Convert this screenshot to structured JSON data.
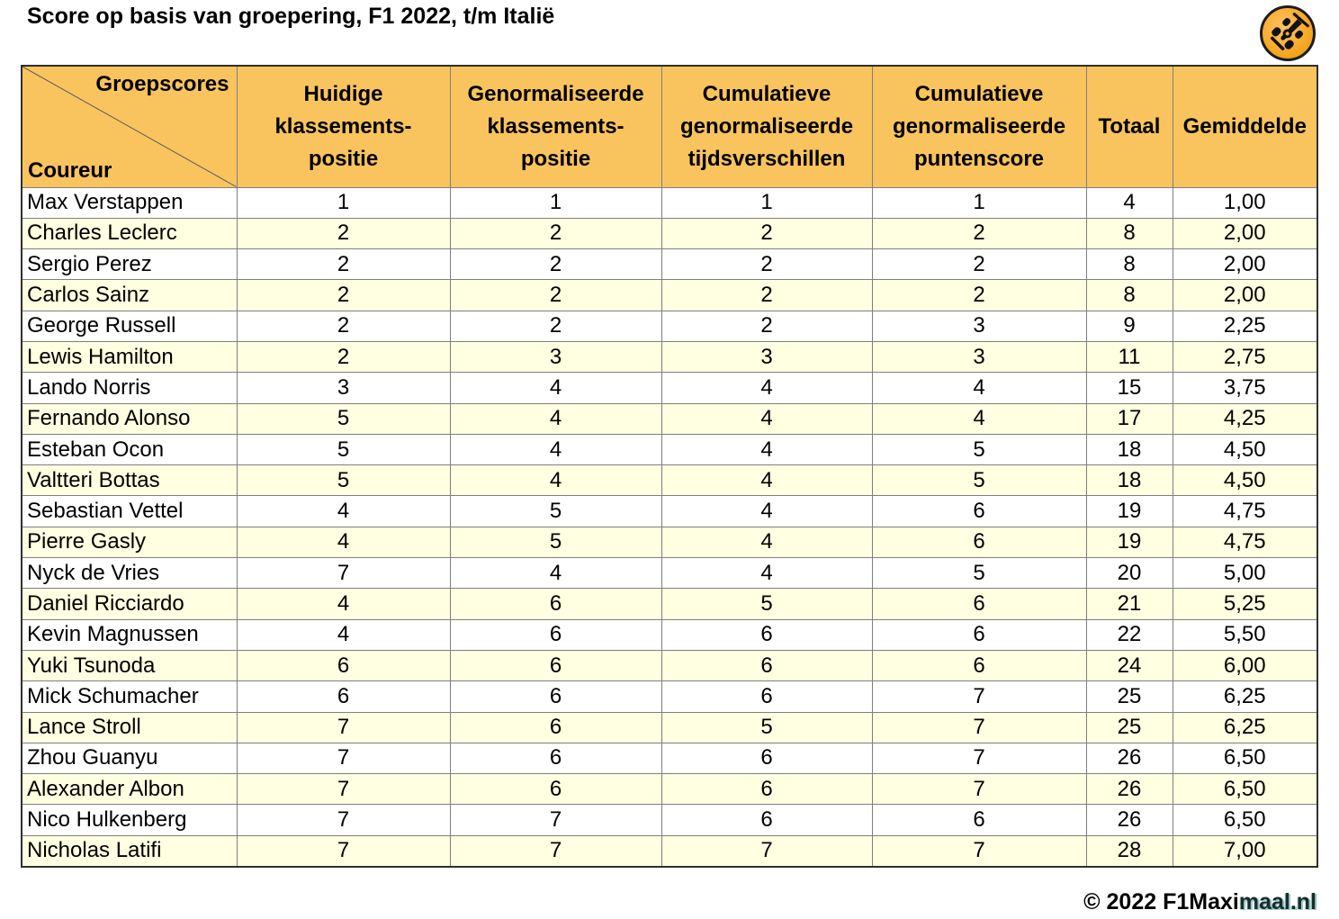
{
  "title": "Score op basis van groepering, F1 2022, t/m Italië",
  "logo_icon": "race-car-icon",
  "colors": {
    "header_bg": "#F9C45E",
    "row_bg": "#FFFFFF",
    "row_alt_bg": "#FFFFE1",
    "logo_orange_light": "#FFC266",
    "logo_orange_dark": "#EF9A0C",
    "border_dark": "#2F2F2F",
    "border_light": "#7F7F7F"
  },
  "footer": {
    "part1": "© 2022 F1Maxi",
    "part2": "maal.nl"
  },
  "chart_data": {
    "type": "table",
    "title": "Score op basis van groepering, F1 2022, t/m Italië",
    "corner": {
      "top_right": "Groepscores",
      "bottom_left": "Coureur"
    },
    "columns": [
      "Huidige\nklassements-\npositie",
      "Genormaliseerde\nklassements-\npositie",
      "Cumulatieve\ngenormaliseerde\ntijdsverschillen",
      "Cumulatieve\ngenormaliseerde\npuntenscore",
      "Totaal",
      "Gemiddelde"
    ],
    "rows": [
      {
        "coureur": "Max Verstappen",
        "values": [
          "1",
          "1",
          "1",
          "1",
          "4",
          "1,00"
        ]
      },
      {
        "coureur": "Charles Leclerc",
        "values": [
          "2",
          "2",
          "2",
          "2",
          "8",
          "2,00"
        ]
      },
      {
        "coureur": "Sergio Perez",
        "values": [
          "2",
          "2",
          "2",
          "2",
          "8",
          "2,00"
        ]
      },
      {
        "coureur": "Carlos Sainz",
        "values": [
          "2",
          "2",
          "2",
          "2",
          "8",
          "2,00"
        ]
      },
      {
        "coureur": "George Russell",
        "values": [
          "2",
          "2",
          "2",
          "3",
          "9",
          "2,25"
        ]
      },
      {
        "coureur": "Lewis Hamilton",
        "values": [
          "2",
          "3",
          "3",
          "3",
          "11",
          "2,75"
        ]
      },
      {
        "coureur": "Lando Norris",
        "values": [
          "3",
          "4",
          "4",
          "4",
          "15",
          "3,75"
        ]
      },
      {
        "coureur": "Fernando Alonso",
        "values": [
          "5",
          "4",
          "4",
          "4",
          "17",
          "4,25"
        ]
      },
      {
        "coureur": "Esteban Ocon",
        "values": [
          "5",
          "4",
          "4",
          "5",
          "18",
          "4,50"
        ]
      },
      {
        "coureur": "Valtteri Bottas",
        "values": [
          "5",
          "4",
          "4",
          "5",
          "18",
          "4,50"
        ]
      },
      {
        "coureur": "Sebastian Vettel",
        "values": [
          "4",
          "5",
          "4",
          "6",
          "19",
          "4,75"
        ]
      },
      {
        "coureur": "Pierre Gasly",
        "values": [
          "4",
          "5",
          "4",
          "6",
          "19",
          "4,75"
        ]
      },
      {
        "coureur": "Nyck de Vries",
        "values": [
          "7",
          "4",
          "4",
          "5",
          "20",
          "5,00"
        ]
      },
      {
        "coureur": "Daniel Ricciardo",
        "values": [
          "4",
          "6",
          "5",
          "6",
          "21",
          "5,25"
        ]
      },
      {
        "coureur": "Kevin Magnussen",
        "values": [
          "4",
          "6",
          "6",
          "6",
          "22",
          "5,50"
        ]
      },
      {
        "coureur": "Yuki Tsunoda",
        "values": [
          "6",
          "6",
          "6",
          "6",
          "24",
          "6,00"
        ]
      },
      {
        "coureur": "Mick Schumacher",
        "values": [
          "6",
          "6",
          "6",
          "7",
          "25",
          "6,25"
        ]
      },
      {
        "coureur": "Lance Stroll",
        "values": [
          "7",
          "6",
          "5",
          "7",
          "25",
          "6,25"
        ]
      },
      {
        "coureur": "Zhou Guanyu",
        "values": [
          "7",
          "6",
          "6",
          "7",
          "26",
          "6,50"
        ]
      },
      {
        "coureur": "Alexander Albon",
        "values": [
          "7",
          "6",
          "6",
          "7",
          "26",
          "6,50"
        ]
      },
      {
        "coureur": "Nico Hulkenberg",
        "values": [
          "7",
          "7",
          "6",
          "6",
          "26",
          "6,50"
        ]
      },
      {
        "coureur": "Nicholas Latifi",
        "values": [
          "7",
          "7",
          "7",
          "7",
          "28",
          "7,00"
        ]
      }
    ]
  }
}
